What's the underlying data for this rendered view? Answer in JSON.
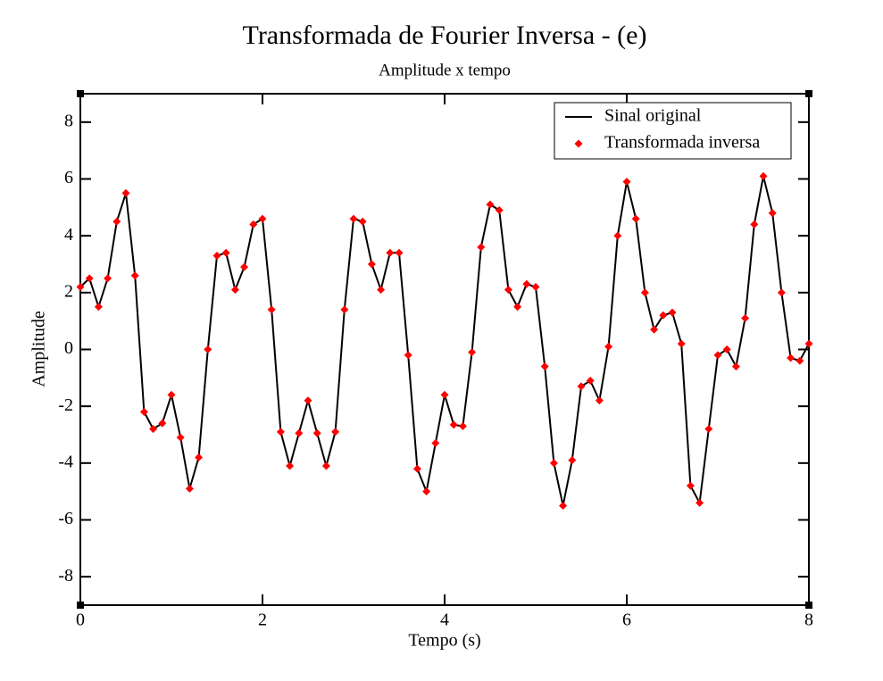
{
  "chart_data": {
    "type": "line",
    "title": "Transformada de Fourier Inversa - (e)",
    "subtitle": "Amplitude x tempo",
    "x_label": "Tempo (s)",
    "y_label": "Amplitude",
    "xlim": [
      0,
      8
    ],
    "xticks": [
      0,
      2,
      4,
      6,
      8
    ],
    "ylim": [
      -9,
      9
    ],
    "yticks": [
      -8,
      -6,
      -4,
      -2,
      0,
      2,
      4,
      6,
      8
    ],
    "grid": false,
    "legend": "upper right",
    "x": [
      0.0,
      0.1,
      0.2,
      0.3,
      0.4,
      0.5,
      0.6,
      0.7,
      0.8,
      0.9,
      1.0,
      1.1,
      1.2,
      1.3,
      1.4,
      1.5,
      1.6,
      1.7,
      1.8,
      1.9,
      2.0,
      2.1,
      2.2,
      2.3,
      2.4,
      2.5,
      2.6,
      2.7,
      2.8,
      2.9,
      3.0,
      3.1,
      3.2,
      3.3,
      3.4,
      3.5,
      3.6,
      3.7,
      3.8,
      3.9,
      4.0,
      4.1,
      4.2,
      4.3,
      4.4,
      4.5,
      4.6,
      4.7,
      4.8,
      4.9,
      5.0,
      5.1,
      5.2,
      5.3,
      5.4,
      5.5,
      5.6,
      5.7,
      5.8,
      5.9,
      6.0,
      6.1,
      6.2,
      6.3,
      6.4,
      6.5,
      6.6,
      6.7,
      6.8,
      6.9,
      7.0,
      7.1,
      7.2,
      7.3,
      7.4,
      7.5,
      7.6,
      7.7,
      7.8,
      7.9,
      8.0
    ],
    "series": [
      {
        "name": "Sinal original",
        "type": "line",
        "color": "#000000",
        "values": [
          2.2,
          2.5,
          1.5,
          2.5,
          4.5,
          5.5,
          2.6,
          -2.2,
          -2.8,
          -2.6,
          -1.6,
          -3.1,
          -4.9,
          -3.8,
          0.0,
          3.3,
          3.4,
          2.1,
          2.9,
          4.4,
          4.6,
          1.4,
          -2.9,
          -4.1,
          -2.95,
          -1.8,
          -2.95,
          -4.1,
          -2.9,
          1.4,
          4.6,
          4.5,
          3.0,
          2.1,
          3.4,
          3.4,
          -0.2,
          -4.2,
          -5.0,
          -3.3,
          -1.6,
          -2.65,
          -2.7,
          -0.1,
          3.6,
          5.1,
          4.9,
          2.1,
          1.5,
          2.3,
          2.2,
          -0.6,
          -4.0,
          -5.5,
          -3.9,
          -1.3,
          -1.1,
          -1.8,
          0.1,
          4.0,
          5.9,
          4.6,
          2.0,
          0.7,
          1.2,
          1.3,
          0.2,
          -4.8,
          -5.4,
          -2.8,
          -0.2,
          0.0,
          -0.6,
          1.1,
          4.4,
          6.1,
          4.8,
          2.0,
          -0.3,
          -0.4,
          0.2
        ]
      },
      {
        "name": "Transformada inversa",
        "type": "scatter",
        "color": "#ff0000",
        "values": [
          2.2,
          2.5,
          1.5,
          2.5,
          4.5,
          5.5,
          2.6,
          -2.2,
          -2.8,
          -2.6,
          -1.6,
          -3.1,
          -4.9,
          -3.8,
          0.0,
          3.3,
          3.4,
          2.1,
          2.9,
          4.4,
          4.6,
          1.4,
          -2.9,
          -4.1,
          -2.95,
          -1.8,
          -2.95,
          -4.1,
          -2.9,
          1.4,
          4.6,
          4.5,
          3.0,
          2.1,
          3.4,
          3.4,
          -0.2,
          -4.2,
          -5.0,
          -3.3,
          -1.6,
          -2.65,
          -2.7,
          -0.1,
          3.6,
          5.1,
          4.9,
          2.1,
          1.5,
          2.3,
          2.2,
          -0.6,
          -4.0,
          -5.5,
          -3.9,
          -1.3,
          -1.1,
          -1.8,
          0.1,
          4.0,
          5.9,
          4.6,
          2.0,
          0.7,
          1.2,
          1.3,
          0.2,
          -4.8,
          -5.4,
          -2.8,
          -0.2,
          0.0,
          -0.6,
          1.1,
          4.4,
          6.1,
          4.8,
          2.0,
          -0.3,
          -0.4,
          0.2
        ]
      }
    ]
  }
}
